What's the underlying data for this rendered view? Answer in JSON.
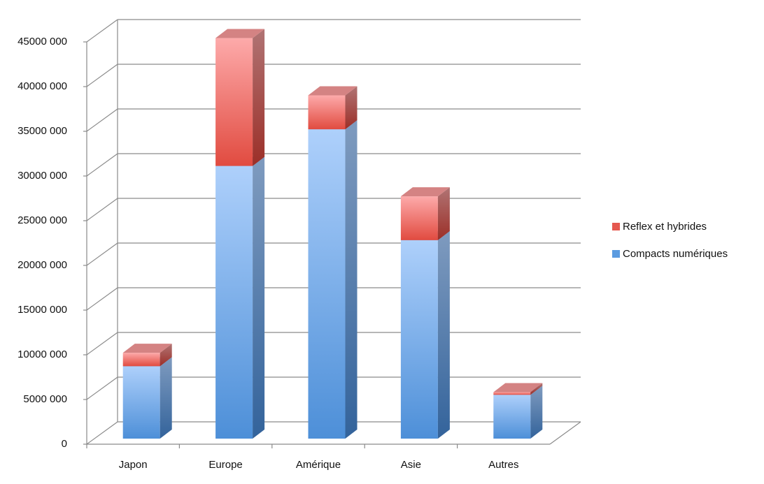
{
  "chart_data": {
    "type": "bar3d-stacked",
    "categories": [
      "Japon",
      "Europe",
      "Amérique",
      "Asie",
      "Autres"
    ],
    "series": [
      {
        "name": "Compacts numériques",
        "color": "#5b9be0",
        "values": [
          8100000,
          30500000,
          34600000,
          22200000,
          4900000
        ]
      },
      {
        "name": "Reflex et hybrides",
        "color": "#e5584f",
        "values": [
          1500000,
          14300000,
          3800000,
          4900000,
          300000
        ]
      }
    ],
    "ylim": [
      0,
      45000000
    ],
    "yticks": [
      0,
      {
        "value": 5000000,
        "label": "5000 000"
      },
      {
        "value": 10000000,
        "label": "10000 000"
      },
      {
        "value": 15000000,
        "label": "15000 000"
      },
      {
        "value": 20000000,
        "label": "20000 000"
      },
      {
        "value": 25000000,
        "label": "25000 000"
      },
      {
        "value": 30000000,
        "label": "30000 000"
      },
      {
        "value": 35000000,
        "label": "35000 000"
      },
      {
        "value": 40000000,
        "label": "40000 000"
      },
      {
        "value": 45000000,
        "label": "45000 000"
      }
    ],
    "grid": true,
    "legend": "right"
  }
}
